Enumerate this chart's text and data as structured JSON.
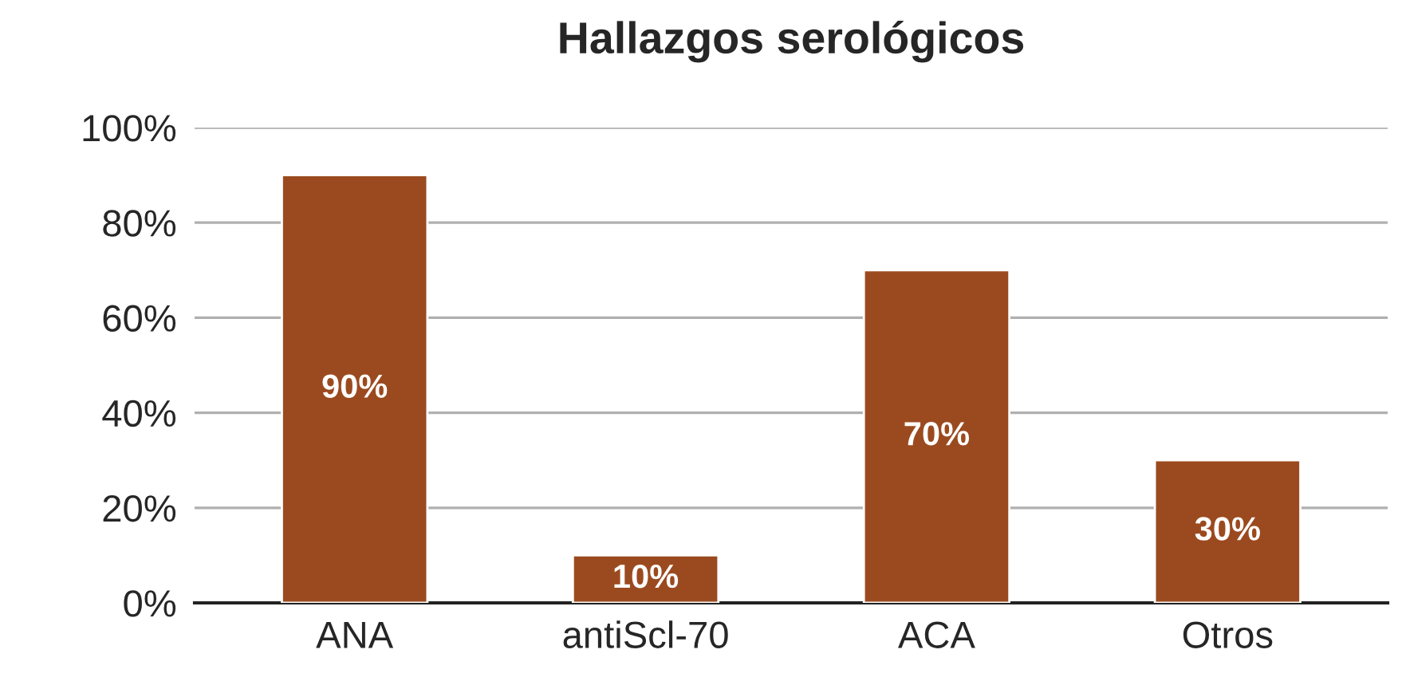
{
  "chart_data": {
    "type": "bar",
    "title": "Hallazgos serológicos",
    "categories": [
      "ANA",
      "antiScl-70",
      "ACA",
      "Otros"
    ],
    "values": [
      90,
      10,
      70,
      30
    ],
    "color": "#9b4a1f",
    "value_labels": [
      "90%",
      "10%",
      "70%",
      "30%"
    ],
    "ylim": [
      0,
      100
    ],
    "yticks": [
      {
        "value": 0,
        "label": "0%"
      },
      {
        "value": 20,
        "label": "20%"
      },
      {
        "value": 40,
        "label": "40%"
      },
      {
        "value": 60,
        "label": "60%"
      },
      {
        "value": 80,
        "label": "80%"
      },
      {
        "value": 100,
        "label": "100%"
      }
    ],
    "grid": "y",
    "legend": false
  }
}
